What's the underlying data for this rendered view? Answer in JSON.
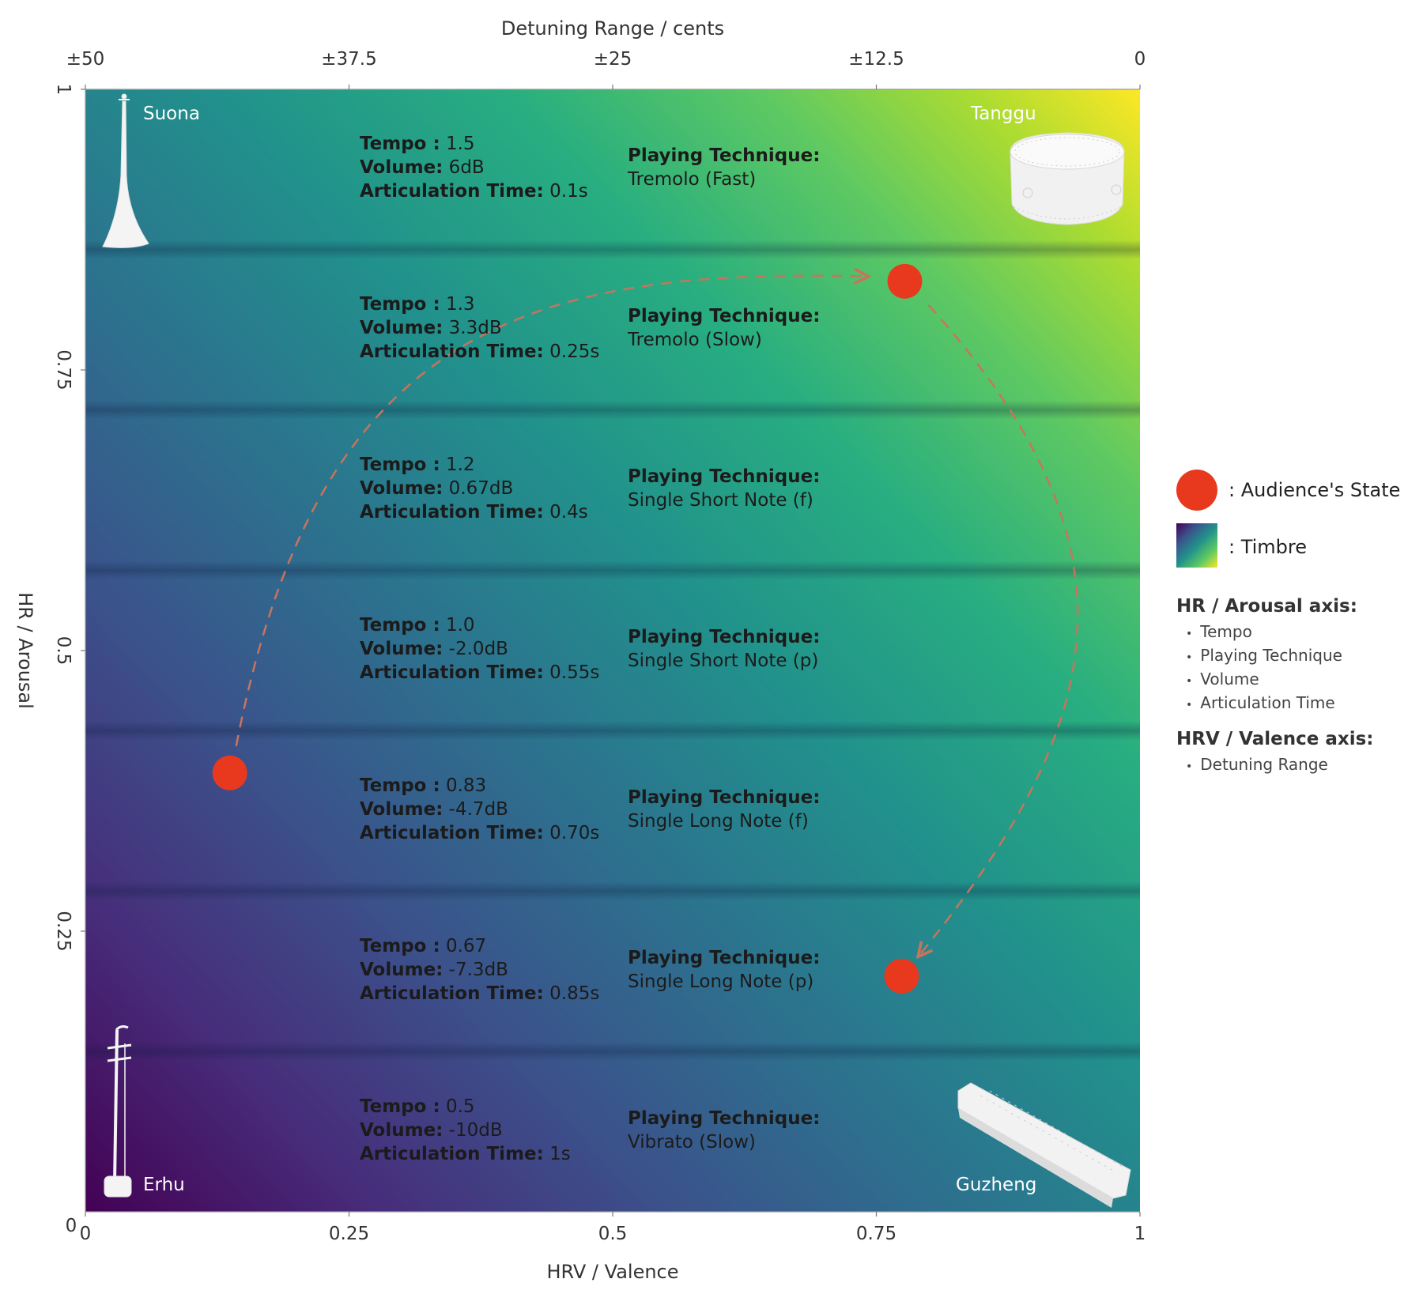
{
  "chart_data": {
    "type": "diagram",
    "top_axis": {
      "title": "Detuning Range / cents",
      "ticks": [
        "±50",
        "±37.5",
        "±25",
        "±12.5",
        "0"
      ]
    },
    "x_axis": {
      "title": "HRV / Valence",
      "range": [
        0,
        1
      ],
      "ticks": [
        {
          "value": 0,
          "label": "0"
        },
        {
          "value": 0.25,
          "label": "0.25"
        },
        {
          "value": 0.5,
          "label": "0.5"
        },
        {
          "value": 0.75,
          "label": "0.75"
        },
        {
          "value": 1,
          "label": "1"
        }
      ]
    },
    "y_axis": {
      "title": "HR / Arousal",
      "range": [
        0,
        1
      ],
      "ticks": [
        {
          "value": 1,
          "label": "1"
        },
        {
          "value": 0.75,
          "label": "0.75"
        },
        {
          "value": 0.5,
          "label": "0.5"
        },
        {
          "value": 0.25,
          "label": "0.25"
        }
      ]
    },
    "bands": [
      {
        "tempo": "1.5",
        "volume": "6dB",
        "articulation": "0.1s",
        "technique": "Tremolo (Fast)"
      },
      {
        "tempo": "1.3",
        "volume": "3.3dB",
        "articulation": "0.25s",
        "technique": "Tremolo (Slow)"
      },
      {
        "tempo": "1.2",
        "volume": "0.67dB",
        "articulation": "0.4s",
        "technique": "Single Short Note (f)"
      },
      {
        "tempo": "1.0",
        "volume": "-2.0dB",
        "articulation": "0.55s",
        "technique": "Single Short Note (p)"
      },
      {
        "tempo": "0.83",
        "volume": "-4.7dB",
        "articulation": "0.70s",
        "technique": "Single Long Note (f)"
      },
      {
        "tempo": "0.67",
        "volume": "-7.3dB",
        "articulation": "0.85s",
        "technique": "Single Long Note (p)"
      },
      {
        "tempo": "0.5",
        "volume": "-10dB",
        "articulation": "1s",
        "technique": "Vibrato (Slow)"
      }
    ],
    "labels": {
      "tempo": "Tempo :",
      "volume": "Volume:",
      "articulation": "Articulation Time:",
      "technique": "Playing Technique:"
    },
    "instruments": {
      "top_left": "Suona",
      "top_right": "Tanggu",
      "bottom_left": "Erhu",
      "bottom_right": "Guzheng"
    },
    "audience_states": [
      {
        "x": 0.137,
        "y": 0.391
      },
      {
        "x": 0.777,
        "y": 0.829
      },
      {
        "x": 0.774,
        "y": 0.21
      }
    ],
    "trajectory_color": "#c8745c",
    "state_color": "#e8391e",
    "colormap": "viridis"
  },
  "legend": {
    "state_label": ": Audience's State",
    "timbre_label": ": Timbre",
    "hr_heading": "HR / Arousal axis:",
    "hr_items": [
      "Tempo",
      "Playing Technique",
      "Volume",
      "Articulation Time"
    ],
    "hrv_heading": "HRV / Valence axis:",
    "hrv_items": [
      "Detuning Range"
    ]
  }
}
